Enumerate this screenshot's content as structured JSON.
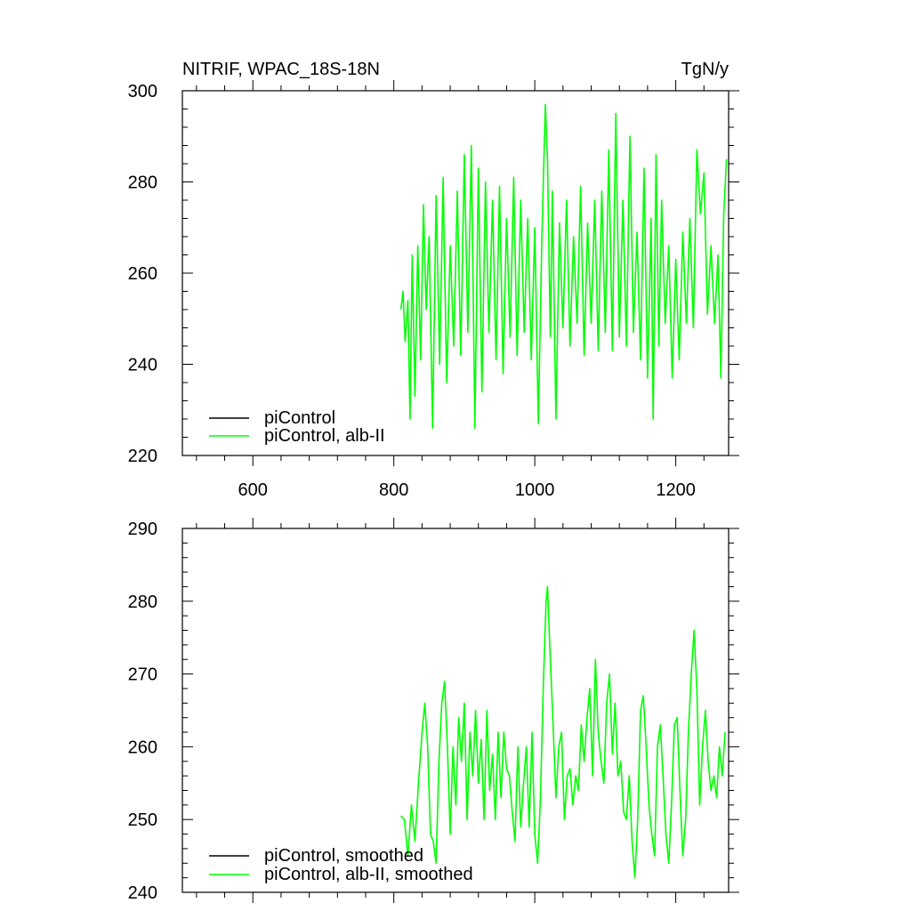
{
  "chart_data": [
    {
      "type": "line",
      "title": "NITRIF, WPAC_18S-18N",
      "units_label": "TgN/y",
      "xlim": [
        500,
        1275
      ],
      "ylim": [
        220,
        300
      ],
      "x_ticks": [
        600,
        800,
        1000,
        1200
      ],
      "x_tick_labels": [
        "600",
        "800",
        "1000",
        "1200"
      ],
      "y_ticks": [
        220,
        240,
        260,
        280,
        300
      ],
      "y_tick_labels": [
        "220",
        "240",
        "260",
        "280",
        "300"
      ],
      "legend": "bottom-left",
      "series": [
        {
          "name": "piControl",
          "color": "#000000",
          "x_start": 810,
          "values": []
        },
        {
          "name": "piControl, alb-II",
          "color": "#00ff00",
          "x_start": 810,
          "x_end": 1272,
          "anchors": [
            [
              810,
              252
            ],
            [
              813,
              256
            ],
            [
              816,
              245
            ],
            [
              820,
              254
            ],
            [
              823,
              228
            ],
            [
              826,
              264
            ],
            [
              830,
              233
            ],
            [
              834,
              266
            ],
            [
              838,
              241
            ],
            [
              842,
              275
            ],
            [
              846,
              252
            ],
            [
              850,
              268
            ],
            [
              855,
              226
            ],
            [
              860,
              277
            ],
            [
              865,
              240
            ],
            [
              870,
              281
            ],
            [
              875,
              236
            ],
            [
              880,
              266
            ],
            [
              885,
              244
            ],
            [
              890,
              278
            ],
            [
              895,
              242
            ],
            [
              900,
              286
            ],
            [
              905,
              247
            ],
            [
              910,
              288
            ],
            [
              915,
              226
            ],
            [
              920,
              283
            ],
            [
              925,
              234
            ],
            [
              930,
              280
            ],
            [
              935,
              247
            ],
            [
              940,
              276
            ],
            [
              945,
              241
            ],
            [
              950,
              279
            ],
            [
              955,
              238
            ],
            [
              960,
              272
            ],
            [
              965,
              246
            ],
            [
              970,
              281
            ],
            [
              975,
              242
            ],
            [
              980,
              276
            ],
            [
              985,
              247
            ],
            [
              990,
              272
            ],
            [
              995,
              241
            ],
            [
              1000,
              270
            ],
            [
              1005,
              227
            ],
            [
              1010,
              268
            ],
            [
              1015,
              297
            ],
            [
              1018,
              285
            ],
            [
              1022,
              246
            ],
            [
              1025,
              278
            ],
            [
              1030,
              228
            ],
            [
              1035,
              271
            ],
            [
              1040,
              248
            ],
            [
              1045,
              276
            ],
            [
              1050,
              244
            ],
            [
              1055,
              268
            ],
            [
              1060,
              249
            ],
            [
              1065,
              279
            ],
            [
              1070,
              242
            ],
            [
              1075,
              271
            ],
            [
              1080,
              249
            ],
            [
              1085,
              276
            ],
            [
              1090,
              243
            ],
            [
              1095,
              278
            ],
            [
              1100,
              247
            ],
            [
              1105,
              287
            ],
            [
              1110,
              243
            ],
            [
              1115,
              295
            ],
            [
              1120,
              246
            ],
            [
              1125,
              276
            ],
            [
              1130,
              244
            ],
            [
              1135,
              290
            ],
            [
              1140,
              247
            ],
            [
              1145,
              269
            ],
            [
              1150,
              241
            ],
            [
              1155,
              283
            ],
            [
              1160,
              237
            ],
            [
              1165,
              272
            ],
            [
              1168,
              228
            ],
            [
              1172,
              286
            ],
            [
              1176,
              244
            ],
            [
              1180,
              276
            ],
            [
              1185,
              249
            ],
            [
              1190,
              266
            ],
            [
              1195,
              237
            ],
            [
              1200,
              263
            ],
            [
              1205,
              241
            ],
            [
              1210,
              269
            ],
            [
              1215,
              249
            ],
            [
              1220,
              272
            ],
            [
              1225,
              248
            ],
            [
              1230,
              287
            ],
            [
              1235,
              273
            ],
            [
              1240,
              282
            ],
            [
              1245,
              251
            ],
            [
              1250,
              266
            ],
            [
              1255,
              249
            ],
            [
              1260,
              264
            ],
            [
              1264,
              237
            ],
            [
              1268,
              273
            ],
            [
              1272,
              285
            ]
          ]
        }
      ]
    },
    {
      "type": "line",
      "xlim": [
        500,
        1275
      ],
      "ylim": [
        240,
        290
      ],
      "x_ticks": [
        600,
        800,
        1000,
        1200
      ],
      "y_ticks": [
        240,
        250,
        260,
        270,
        280,
        290
      ],
      "y_tick_labels": [
        "240",
        "250",
        "260",
        "270",
        "280",
        "290"
      ],
      "legend": "bottom-left",
      "series": [
        {
          "name": "piControl, smoothed",
          "color": "#000000",
          "x_start": 810,
          "values": []
        },
        {
          "name": "piControl, alb-II, smoothed",
          "color": "#00ff00",
          "x_start": 810,
          "x_end": 1272,
          "anchors": [
            [
              810,
              250.5
            ],
            [
              815,
              250
            ],
            [
              820,
              245
            ],
            [
              825,
              252
            ],
            [
              830,
              247
            ],
            [
              835,
              255
            ],
            [
              840,
              262
            ],
            [
              844,
              266
            ],
            [
              848,
              260
            ],
            [
              852,
              248
            ],
            [
              856,
              247
            ],
            [
              860,
              244
            ],
            [
              864,
              258
            ],
            [
              868,
              266
            ],
            [
              872,
              269
            ],
            [
              876,
              260
            ],
            [
              880,
              248
            ],
            [
              884,
              260
            ],
            [
              888,
              252
            ],
            [
              892,
              264
            ],
            [
              896,
              258
            ],
            [
              900,
              266
            ],
            [
              904,
              250
            ],
            [
              908,
              262
            ],
            [
              912,
              256
            ],
            [
              916,
              265
            ],
            [
              920,
              255
            ],
            [
              924,
              261
            ],
            [
              928,
              250
            ],
            [
              932,
              265
            ],
            [
              936,
              254
            ],
            [
              940,
              259
            ],
            [
              944,
              250
            ],
            [
              948,
              262
            ],
            [
              952,
              253
            ],
            [
              956,
              262
            ],
            [
              960,
              257
            ],
            [
              964,
              256
            ],
            [
              968,
              251
            ],
            [
              972,
              247
            ],
            [
              976,
              260
            ],
            [
              980,
              249
            ],
            [
              984,
              255
            ],
            [
              988,
              260
            ],
            [
              992,
              249
            ],
            [
              996,
              262
            ],
            [
              1000,
              248
            ],
            [
              1004,
              244
            ],
            [
              1008,
              253
            ],
            [
              1012,
              268
            ],
            [
              1016,
              280
            ],
            [
              1018,
              282
            ],
            [
              1022,
              272
            ],
            [
              1026,
              263
            ],
            [
              1030,
              253
            ],
            [
              1034,
              260
            ],
            [
              1038,
              262
            ],
            [
              1042,
              250
            ],
            [
              1046,
              256
            ],
            [
              1050,
              257
            ],
            [
              1054,
              252
            ],
            [
              1058,
              256
            ],
            [
              1062,
              254
            ],
            [
              1066,
              263
            ],
            [
              1070,
              258
            ],
            [
              1074,
              264
            ],
            [
              1078,
              268
            ],
            [
              1082,
              256
            ],
            [
              1086,
              272
            ],
            [
              1090,
              262
            ],
            [
              1094,
              258
            ],
            [
              1098,
              255
            ],
            [
              1102,
              266
            ],
            [
              1106,
              270
            ],
            [
              1110,
              259
            ],
            [
              1114,
              266
            ],
            [
              1118,
              256
            ],
            [
              1122,
              258
            ],
            [
              1126,
              251
            ],
            [
              1130,
              250
            ],
            [
              1134,
              256
            ],
            [
              1138,
              247
            ],
            [
              1142,
              242
            ],
            [
              1146,
              250
            ],
            [
              1150,
              265
            ],
            [
              1154,
              267
            ],
            [
              1158,
              260
            ],
            [
              1162,
              252
            ],
            [
              1166,
              248
            ],
            [
              1170,
              245
            ],
            [
              1174,
              260
            ],
            [
              1178,
              263
            ],
            [
              1182,
              256
            ],
            [
              1186,
              248
            ],
            [
              1190,
              244
            ],
            [
              1194,
              252
            ],
            [
              1198,
              263
            ],
            [
              1202,
              264
            ],
            [
              1206,
              254
            ],
            [
              1210,
              245
            ],
            [
              1214,
              250
            ],
            [
              1218,
              262
            ],
            [
              1222,
              270
            ],
            [
              1226,
              276
            ],
            [
              1230,
              268
            ],
            [
              1234,
              252
            ],
            [
              1238,
              260
            ],
            [
              1242,
              265
            ],
            [
              1246,
              258
            ],
            [
              1250,
              254
            ],
            [
              1254,
              256
            ],
            [
              1258,
              253
            ],
            [
              1262,
              260
            ],
            [
              1266,
              256
            ],
            [
              1270,
              262
            ]
          ]
        }
      ]
    }
  ]
}
